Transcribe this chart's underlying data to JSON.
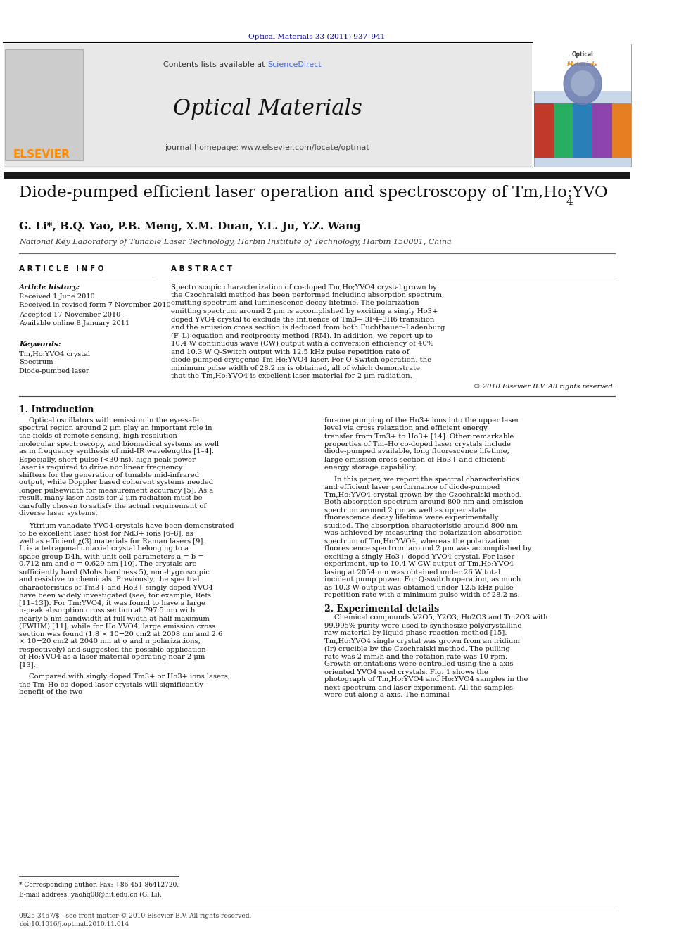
{
  "page_width": 9.92,
  "page_height": 13.23,
  "bg_color": "#ffffff",
  "journal_ref": "Optical Materials 33 (2011) 937–941",
  "journal_ref_color": "#00008B",
  "header_bg": "#e8e8e8",
  "elsevier_color": "#FF8C00",
  "sciencedirect_color": "#4169E1",
  "journal_title": "Optical Materials",
  "homepage_text": "journal homepage: www.elsevier.com/locate/optmat",
  "black_bar_color": "#1a1a1a",
  "paper_title": "Diode-pumped efficient laser operation and spectroscopy of Tm,Ho:YVO",
  "paper_title_sub": "4",
  "authors": "G. Li*, B.Q. Yao, P.B. Meng, X.M. Duan, Y.L. Ju, Y.Z. Wang",
  "affiliation": "National Key Laboratory of Tunable Laser Technology, Harbin Institute of Technology, Harbin 150001, China",
  "article_info_header": "A R T I C L E   I N F O",
  "abstract_header": "A B S T R A C T",
  "article_history_label": "Article history:",
  "received_text": "Received 1 June 2010",
  "revised_text": "Received in revised form 7 November 2010",
  "accepted_text": "Accepted 17 November 2010",
  "available_text": "Available online 8 January 2011",
  "keywords_label": "Keywords:",
  "keyword1": "Tm,Ho:YVO4 crystal",
  "keyword2": "Spectrum",
  "keyword3": "Diode-pumped laser",
  "abstract_text": "Spectroscopic characterization of co-doped Tm,Ho;YVO4 crystal grown by the Czochralski method has been performed including absorption spectrum, emitting spectrum and luminescence decay lifetime. The polarization emitting spectrum around 2 μm is accomplished by exciting a singly Ho3+ doped YVO4 crystal to exclude the influence of Tm3+ 3F4–3H6 transition and the emission cross section is deduced from both Fuchtbauer–Ladenburg (F–L) equation and reciprocity method (RM). In addition, we report up to 10.4 W continuous wave (CW) output with a conversion efficiency of 40% and 10.3 W Q-Switch output with 12.5 kHz pulse repetition rate of diode-pumped cryogenic Tm,Ho;YVO4 laser. For Q-Switch operation, the minimum pulse width of 28.2 ns is obtained, all of which demonstrate that the Tm,Ho:YVO4 is excellent laser material for 2 μm radiation.",
  "copyright_text": "© 2010 Elsevier B.V. All rights reserved.",
  "intro_header": "1. Introduction",
  "intro_text1": "Optical oscillators with emission in the eye-safe spectral region around 2 μm play an important role in the fields of remote sensing, high-resolution molecular spectroscopy, and biomedical systems as well as in frequency synthesis of mid-IR wavelengths [1–4]. Especially, short pulse (<30 ns), high peak power laser is required to drive nonlinear frequency shifters for the generation of tunable mid-infrared output, while Doppler based coherent systems needed longer pulsewidth for measurement accuracy [5]. As a result, many laser hosts for 2 μm radiation must be carefully chosen to satisfy the actual requirement of diverse laser systems.",
  "intro_text2": "Yttrium vanadate YVO4 crystals have been demonstrated to be excellent laser host for Nd3+ ions [6–8], as well as efficient χ(3) materials for Raman lasers [9]. It is a tetragonal uniaxial crystal belonging to a space group D4h, with unit cell parameters a = b = 0.712 nm and c = 0.629 nm [10]. The crystals are sufficiently hard (Mohs hardness 5), non-hygroscopic and resistive to chemicals. Previously, the spectral characteristics of Tm3+ and Ho3+ singly doped YVO4 have been widely investigated (see, for example, Refs [11–13]). For Tm:YVO4, it was found to have a large π-peak absorption cross section at 797.5 nm with nearly 5 nm bandwidth at full width at half maximum (FWHM) [11], while for Ho:YVO4, large emission cross section was found (1.8 × 10−20 cm2 at 2008 nm and 2.6 × 10−20 cm2 at 2040 nm at σ and π polarizations, respectively) and suggested the possible application of Ho:YVO4 as a laser material operating near 2 μm [13].",
  "intro_text3": "Compared with singly doped Tm3+ or Ho3+ ions lasers, the Tm–Ho co-doped laser crystals will significantly benefit of the two-",
  "right_col_text1": "for-one pumping of the Ho3+ ions into the upper laser level via cross relaxation and efficient energy transfer from Tm3+ to Ho3+ [14]. Other remarkable properties of Tm–Ho co-doped laser crystals include diode-pumped available, long fluorescence lifetime, large emission cross section of Ho3+ and efficient energy storage capability.",
  "right_col_text2": "In this paper, we report the spectral characteristics and efficient laser performance of diode-pumped Tm,Ho:YVO4 crystal grown by the Czochralski method. Both absorption spectrum around 800 nm and emission spectrum around 2 μm as well as upper state fluorescence decay lifetime were experimentally studied. The absorption characteristic around 800 nm was achieved by measuring the polarization absorption spectrum of Tm,Ho:YVO4, whereas the polarization fluorescence spectrum around 2 μm was accomplished by exciting a singly Ho3+ doped YVO4 crystal. For laser experiment, up to 10.4 W CW output of Tm,Ho:YVO4 lasing at 2054 nm was obtained under 26 W total incident pump power. For Q-switch operation, as much as 10.3 W output was obtained under 12.5 kHz pulse repetition rate with a minimum pulse width of 28.2 ns.",
  "section2_header": "2. Experimental details",
  "section2_text": "Chemical compounds V2O5, Y2O3, Ho2O3 and Tm2O3 with 99.995% purity were used to synthesize polycrystalline raw material by liquid-phase reaction method [15]. Tm,Ho:YVO4 single crystal was grown from an iridium (Ir) crucible by the Czochralski method. The pulling rate was 2 mm/h and the rotation rate was 10 rpm. Growth orientations were controlled using the a-axis oriented YVO4 seed crystals. Fig. 1 shows the photograph of Tm,Ho:YVO4 and Ho:YVO4 samples in the next spectrum and laser experiment. All the samples were cut along a-axis. The nominal",
  "footnote_text": "* Corresponding author. Fax: +86 451 86412720.",
  "footnote_email": "E-mail address: yaohq08@hit.edu.cn (G. Li).",
  "footer_text1": "0925-3467/$ - see front matter © 2010 Elsevier B.V. All rights reserved.",
  "footer_text2": "doi:10.1016/j.optmat.2010.11.014"
}
